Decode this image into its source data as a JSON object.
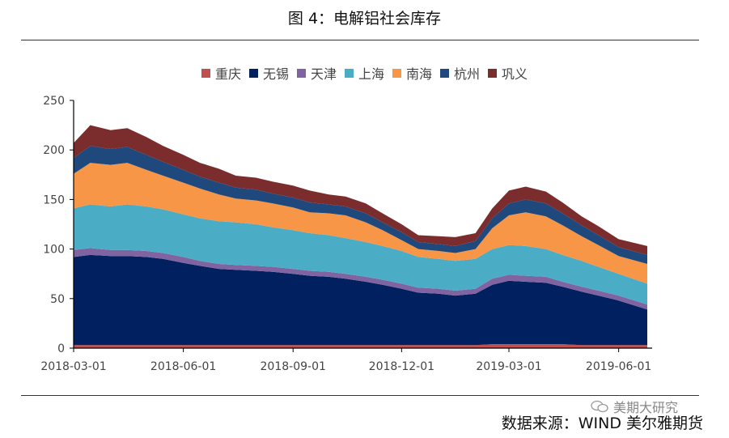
{
  "title": "图 4：电解铝社会库存",
  "source_label": "数据来源：WIND  美尔雅期货",
  "watermark_text": "美期大研究",
  "chart_data": {
    "type": "area",
    "stacked": true,
    "title": "图 4：电解铝社会库存",
    "xlabel": "",
    "ylabel": "",
    "ylim": [
      0,
      250
    ],
    "yticks": [
      0,
      50,
      100,
      150,
      200,
      250
    ],
    "xtick_labels": [
      "2018-03-01",
      "2018-06-01",
      "2018-09-01",
      "2018-12-01",
      "2019-03-01",
      "2019-06-01"
    ],
    "xtick_dates": [
      "2018-03-01",
      "2018-06-01",
      "2018-09-01",
      "2018-12-01",
      "2019-03-01",
      "2019-06-01"
    ],
    "xlim": [
      "2018-03-01",
      "2019-06-25"
    ],
    "grid": false,
    "legend_position": "top",
    "x": [
      "2018-03-01",
      "2018-03-15",
      "2018-04-01",
      "2018-04-15",
      "2018-05-01",
      "2018-05-15",
      "2018-06-01",
      "2018-06-15",
      "2018-07-01",
      "2018-07-15",
      "2018-08-01",
      "2018-08-15",
      "2018-09-01",
      "2018-09-15",
      "2018-10-01",
      "2018-10-15",
      "2018-11-01",
      "2018-11-15",
      "2018-12-01",
      "2018-12-15",
      "2019-01-01",
      "2019-01-15",
      "2019-02-01",
      "2019-02-15",
      "2019-03-01",
      "2019-03-15",
      "2019-04-01",
      "2019-04-15",
      "2019-05-01",
      "2019-05-15",
      "2019-06-01",
      "2019-06-25"
    ],
    "series": [
      {
        "name": "重庆",
        "color": "#c0504d",
        "values": [
          3,
          3,
          3,
          3,
          3,
          3,
          3,
          3,
          3,
          3,
          3,
          3,
          3,
          3,
          3,
          3,
          3,
          3,
          3,
          3,
          3,
          3,
          3,
          4,
          4,
          4,
          4,
          4,
          3,
          3,
          3,
          3
        ]
      },
      {
        "name": "无锡",
        "color": "#002060",
        "values": [
          89,
          91,
          90,
          90,
          89,
          87,
          83,
          80,
          77,
          76,
          75,
          74,
          72,
          70,
          69,
          67,
          64,
          61,
          57,
          53,
          52,
          50,
          52,
          60,
          64,
          63,
          62,
          58,
          54,
          50,
          45,
          36
        ]
      },
      {
        "name": "天津",
        "color": "#8064a2",
        "values": [
          7,
          7,
          6,
          6,
          6,
          6,
          6,
          5,
          5,
          5,
          5,
          5,
          5,
          5,
          5,
          5,
          5,
          5,
          5,
          5,
          5,
          5,
          5,
          6,
          6,
          6,
          6,
          5,
          5,
          5,
          5,
          5
        ]
      },
      {
        "name": "上海",
        "color": "#4bacc6",
        "values": [
          42,
          44,
          44,
          46,
          45,
          44,
          43,
          43,
          43,
          43,
          42,
          40,
          39,
          38,
          37,
          36,
          35,
          34,
          33,
          31,
          30,
          30,
          30,
          30,
          30,
          30,
          28,
          27,
          26,
          24,
          22,
          21
        ]
      },
      {
        "name": "南海",
        "color": "#f79646",
        "values": [
          35,
          42,
          42,
          42,
          37,
          34,
          32,
          30,
          27,
          24,
          24,
          24,
          23,
          21,
          22,
          23,
          20,
          16,
          11,
          8,
          8,
          8,
          10,
          21,
          30,
          34,
          33,
          30,
          25,
          22,
          18,
          20
        ]
      },
      {
        "name": "杭州",
        "color": "#1f497d",
        "values": [
          16,
          17,
          16,
          16,
          15,
          14,
          13,
          12,
          12,
          11,
          11,
          10,
          10,
          10,
          9,
          9,
          9,
          8,
          8,
          7,
          7,
          7,
          8,
          10,
          12,
          13,
          13,
          12,
          11,
          10,
          9,
          9
        ]
      },
      {
        "name": "巩义",
        "color": "#7b2c2c",
        "values": [
          15,
          21,
          19,
          19,
          18,
          16,
          15,
          14,
          14,
          12,
          12,
          12,
          12,
          12,
          10,
          10,
          10,
          9,
          8,
          7,
          8,
          9,
          8,
          10,
          13,
          13,
          12,
          11,
          9,
          9,
          8,
          9
        ]
      }
    ]
  }
}
